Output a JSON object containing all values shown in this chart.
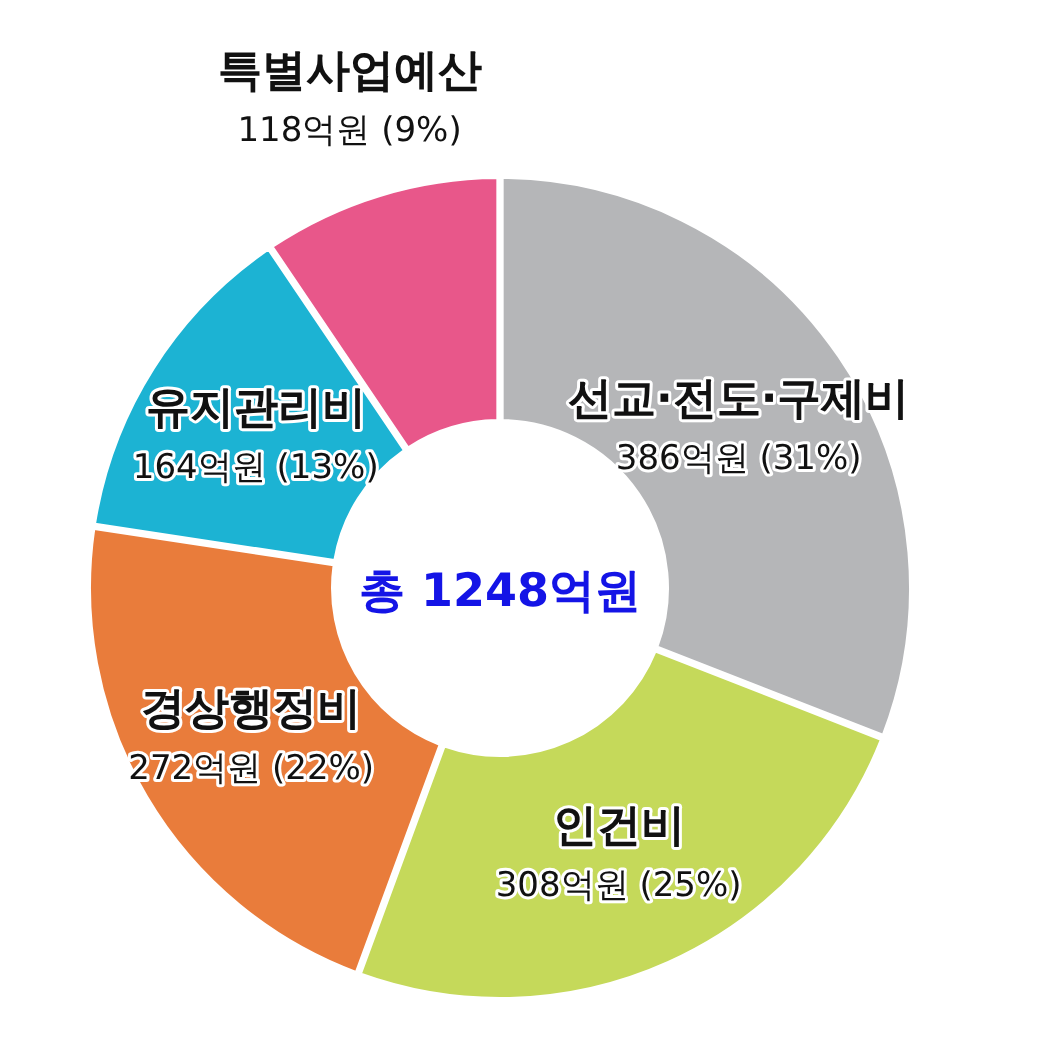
{
  "chart_data": {
    "type": "donut",
    "categories": [
      "선교·전도·구제비",
      "인건비",
      "경상행정비",
      "유지관리비",
      "특별사업예산"
    ],
    "values": [
      386,
      308,
      272,
      164,
      118
    ],
    "colors": [
      "#b5b6b8",
      "#c5d95a",
      "#e97c3b",
      "#1cb3d3",
      "#e8578a"
    ],
    "value_labels": [
      "386억원 (31%)",
      "308억원 (25%)",
      "272억원 (22%)",
      "164억원 (13%)",
      "118억원 (9%)"
    ],
    "annotations": [
      "총 1248억원"
    ],
    "legend": false
  }
}
